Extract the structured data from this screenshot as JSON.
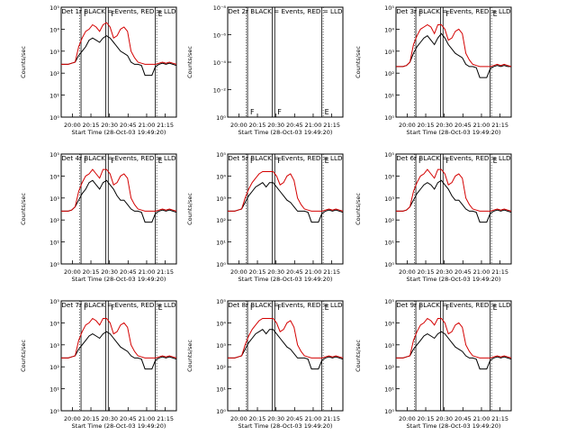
{
  "figure": {
    "ylabel": "Counts/sec",
    "xlabel": "Start Time (28-Oct-03 19:49:20)",
    "xticks": [
      "20:00",
      "20:15",
      "20:30",
      "20:45",
      "21:00",
      "21:15"
    ],
    "series_colors": {
      "events": "#000000",
      "lld": "#d40000"
    },
    "series_names": {
      "events": "Events",
      "lld": "LLD"
    }
  },
  "chart_data": [
    {
      "type": "line",
      "title": "Det 1r BLACK = Events, RED = LLD",
      "ylim_exp": [
        0,
        5
      ],
      "yticklabels": [
        "10⁰",
        "10¹",
        "10²",
        "10³",
        "10⁴",
        "10⁵"
      ],
      "markers": [
        {
          "t": 20.117,
          "l": "F"
        },
        {
          "t": 20.483,
          "l": "F"
        },
        {
          "t": 21.117,
          "l": "E"
        }
      ],
      "series": [
        {
          "name": "Events",
          "key": "events",
          "logy": [
            2.4,
            2.4,
            2.4,
            2.45,
            2.5,
            2.8,
            3.0,
            3.2,
            3.5,
            3.6,
            3.5,
            3.4,
            3.6,
            3.7,
            3.6,
            3.4,
            3.2,
            3.0,
            2.9,
            2.8,
            2.5,
            2.4,
            2.4,
            2.35,
            1.9,
            1.9,
            1.9,
            2.3,
            2.4,
            2.45,
            2.4,
            2.45,
            2.4,
            2.35
          ]
        },
        {
          "name": "LLD",
          "key": "lld",
          "logy": [
            2.4,
            2.4,
            2.4,
            2.45,
            2.5,
            3.2,
            3.6,
            3.9,
            4.0,
            4.2,
            4.1,
            3.9,
            4.2,
            4.3,
            4.1,
            3.6,
            3.7,
            4.0,
            4.1,
            3.9,
            3.0,
            2.7,
            2.5,
            2.45,
            2.4,
            2.4,
            2.4,
            2.4,
            2.45,
            2.5,
            2.45,
            2.5,
            2.45,
            2.4
          ]
        }
      ]
    },
    {
      "type": "line",
      "title": "Det 2r BLACK = Events, RED = LLD",
      "ylim_exp": [
        0,
        -8
      ],
      "yticklabels": [
        "10⁰",
        "10⁻²",
        "10⁻⁴",
        "10⁻⁶",
        "10⁻⁸"
      ],
      "markers": [
        {
          "t": 20.117,
          "l": "F"
        },
        {
          "t": 20.483,
          "l": "F"
        },
        {
          "t": 21.117,
          "l": "E"
        }
      ],
      "series": []
    },
    {
      "type": "line",
      "title": "Det 3r BLACK = Events, RED = LLD",
      "ylim_exp": [
        0,
        5
      ],
      "yticklabels": [
        "10⁰",
        "10¹",
        "10²",
        "10³",
        "10⁴",
        "10⁵"
      ],
      "markers": [
        {
          "t": 20.117,
          "l": "F"
        },
        {
          "t": 20.483,
          "l": "F"
        },
        {
          "t": 21.117,
          "l": "E"
        }
      ],
      "series": [
        {
          "name": "Events",
          "key": "events",
          "logy": [
            2.3,
            2.3,
            2.3,
            2.35,
            2.5,
            2.9,
            3.2,
            3.4,
            3.6,
            3.7,
            3.5,
            3.3,
            3.6,
            3.8,
            3.6,
            3.3,
            3.1,
            2.9,
            2.8,
            2.7,
            2.4,
            2.3,
            2.3,
            2.25,
            1.8,
            1.8,
            1.8,
            2.2,
            2.3,
            2.35,
            2.3,
            2.35,
            2.3,
            2.3
          ]
        },
        {
          "name": "LLD",
          "key": "lld",
          "logy": [
            2.3,
            2.3,
            2.3,
            2.35,
            2.5,
            3.3,
            3.7,
            4.0,
            4.1,
            4.2,
            4.1,
            3.8,
            4.2,
            4.2,
            4.0,
            3.5,
            3.6,
            3.9,
            4.0,
            3.8,
            2.9,
            2.6,
            2.4,
            2.35,
            2.3,
            2.3,
            2.3,
            2.3,
            2.35,
            2.4,
            2.35,
            2.4,
            2.35,
            2.3
          ]
        }
      ]
    },
    {
      "type": "line",
      "title": "Det 4r BLACK = Events, RED = LLD",
      "ylim_exp": [
        0,
        5
      ],
      "yticklabels": [
        "10⁰",
        "10¹",
        "10²",
        "10³",
        "10⁴",
        "10⁵"
      ],
      "markers": [
        {
          "t": 20.117,
          "l": "F"
        },
        {
          "t": 20.483,
          "l": "F"
        },
        {
          "t": 21.117,
          "l": "E"
        }
      ],
      "series": [
        {
          "name": "Events",
          "key": "events",
          "logy": [
            2.4,
            2.4,
            2.4,
            2.45,
            2.6,
            2.9,
            3.2,
            3.4,
            3.7,
            3.8,
            3.6,
            3.4,
            3.7,
            3.8,
            3.6,
            3.4,
            3.1,
            2.9,
            2.9,
            2.7,
            2.5,
            2.4,
            2.4,
            2.35,
            1.9,
            1.9,
            1.9,
            2.3,
            2.4,
            2.45,
            2.4,
            2.45,
            2.4,
            2.35
          ]
        },
        {
          "name": "LLD",
          "key": "lld",
          "logy": [
            2.4,
            2.4,
            2.4,
            2.45,
            2.6,
            3.3,
            3.7,
            4.0,
            4.1,
            4.3,
            4.1,
            3.9,
            4.3,
            4.3,
            4.1,
            3.6,
            3.7,
            4.0,
            4.1,
            3.9,
            3.0,
            2.7,
            2.5,
            2.45,
            2.4,
            2.4,
            2.4,
            2.4,
            2.45,
            2.5,
            2.45,
            2.5,
            2.45,
            2.4
          ]
        }
      ]
    },
    {
      "type": "line",
      "title": "Det 5r BLACK = Events, RED = LLD",
      "ylim_exp": [
        0,
        5
      ],
      "yticklabels": [
        "10⁰",
        "10¹",
        "10²",
        "10³",
        "10⁴",
        "10⁵"
      ],
      "markers": [
        {
          "t": 20.117,
          "l": "F"
        },
        {
          "t": 20.483,
          "l": "F"
        },
        {
          "t": 21.117,
          "l": "E"
        }
      ],
      "series": [
        {
          "name": "Events",
          "key": "events",
          "logy": [
            2.4,
            2.4,
            2.4,
            2.45,
            2.5,
            2.8,
            3.1,
            3.3,
            3.5,
            3.6,
            3.7,
            3.5,
            3.7,
            3.7,
            3.5,
            3.3,
            3.1,
            2.9,
            2.8,
            2.6,
            2.4,
            2.4,
            2.4,
            2.35,
            1.9,
            1.9,
            1.9,
            2.3,
            2.4,
            2.45,
            2.4,
            2.45,
            2.4,
            2.35
          ]
        },
        {
          "name": "LLD",
          "key": "lld",
          "logy": [
            2.4,
            2.4,
            2.4,
            2.45,
            2.5,
            3.0,
            3.4,
            3.7,
            3.9,
            4.1,
            4.2,
            4.2,
            4.2,
            4.2,
            4.0,
            3.6,
            3.7,
            4.0,
            4.1,
            3.8,
            3.0,
            2.7,
            2.5,
            2.45,
            2.4,
            2.4,
            2.4,
            2.4,
            2.45,
            2.5,
            2.45,
            2.5,
            2.45,
            2.4
          ]
        }
      ]
    },
    {
      "type": "line",
      "title": "Det 6r BLACK = Events, RED = LLD",
      "ylim_exp": [
        0,
        5
      ],
      "yticklabels": [
        "10⁰",
        "10¹",
        "10²",
        "10³",
        "10⁴",
        "10⁵"
      ],
      "markers": [
        {
          "t": 20.117,
          "l": "F"
        },
        {
          "t": 20.483,
          "l": "F"
        },
        {
          "t": 21.117,
          "l": "E"
        }
      ],
      "series": [
        {
          "name": "Events",
          "key": "events",
          "logy": [
            2.4,
            2.4,
            2.4,
            2.45,
            2.6,
            2.9,
            3.2,
            3.4,
            3.6,
            3.7,
            3.6,
            3.4,
            3.7,
            3.8,
            3.6,
            3.4,
            3.1,
            2.9,
            2.9,
            2.7,
            2.5,
            2.4,
            2.4,
            2.35,
            1.9,
            1.9,
            1.9,
            2.3,
            2.4,
            2.45,
            2.4,
            2.45,
            2.4,
            2.35
          ]
        },
        {
          "name": "LLD",
          "key": "lld",
          "logy": [
            2.4,
            2.4,
            2.4,
            2.45,
            2.6,
            3.3,
            3.7,
            4.0,
            4.1,
            4.3,
            4.1,
            3.9,
            4.3,
            4.3,
            4.1,
            3.6,
            3.7,
            4.0,
            4.1,
            3.9,
            3.0,
            2.7,
            2.5,
            2.45,
            2.4,
            2.4,
            2.4,
            2.4,
            2.45,
            2.5,
            2.45,
            2.5,
            2.45,
            2.4
          ]
        }
      ]
    },
    {
      "type": "line",
      "title": "Det 7r BLACK = Events, RED = LLD",
      "ylim_exp": [
        0,
        5
      ],
      "yticklabels": [
        "10⁰",
        "10¹",
        "10²",
        "10³",
        "10⁴",
        "10⁵"
      ],
      "markers": [
        {
          "t": 20.117,
          "l": "F"
        },
        {
          "t": 20.483,
          "l": "F"
        },
        {
          "t": 21.117,
          "l": "E"
        }
      ],
      "series": [
        {
          "name": "Events",
          "key": "events",
          "logy": [
            2.4,
            2.4,
            2.4,
            2.45,
            2.5,
            2.8,
            3.0,
            3.2,
            3.4,
            3.5,
            3.4,
            3.3,
            3.5,
            3.6,
            3.5,
            3.3,
            3.1,
            2.9,
            2.8,
            2.7,
            2.5,
            2.4,
            2.4,
            2.35,
            1.9,
            1.9,
            1.9,
            2.3,
            2.4,
            2.45,
            2.4,
            2.45,
            2.4,
            2.35
          ]
        },
        {
          "name": "LLD",
          "key": "lld",
          "logy": [
            2.4,
            2.4,
            2.4,
            2.45,
            2.5,
            3.2,
            3.6,
            3.9,
            4.0,
            4.2,
            4.1,
            3.9,
            4.2,
            4.2,
            4.0,
            3.5,
            3.6,
            3.9,
            4.0,
            3.8,
            3.0,
            2.7,
            2.5,
            2.45,
            2.4,
            2.4,
            2.4,
            2.4,
            2.45,
            2.5,
            2.45,
            2.5,
            2.45,
            2.4
          ]
        }
      ]
    },
    {
      "type": "line",
      "title": "Det 8r BLACK = Events, RED = LLD",
      "ylim_exp": [
        0,
        5
      ],
      "yticklabels": [
        "10⁰",
        "10¹",
        "10²",
        "10³",
        "10⁴",
        "10⁵"
      ],
      "markers": [
        {
          "t": 20.117,
          "l": "F"
        },
        {
          "t": 20.483,
          "l": "F"
        },
        {
          "t": 21.117,
          "l": "E"
        }
      ],
      "series": [
        {
          "name": "Events",
          "key": "events",
          "logy": [
            2.4,
            2.4,
            2.4,
            2.45,
            2.5,
            2.8,
            3.1,
            3.3,
            3.5,
            3.6,
            3.7,
            3.5,
            3.7,
            3.7,
            3.5,
            3.3,
            3.1,
            2.9,
            2.8,
            2.6,
            2.4,
            2.4,
            2.4,
            2.35,
            1.9,
            1.9,
            1.9,
            2.3,
            2.4,
            2.45,
            2.4,
            2.45,
            2.4,
            2.35
          ]
        },
        {
          "name": "LLD",
          "key": "lld",
          "logy": [
            2.4,
            2.4,
            2.4,
            2.45,
            2.5,
            3.0,
            3.4,
            3.7,
            3.9,
            4.1,
            4.2,
            4.2,
            4.2,
            4.2,
            4.0,
            3.6,
            3.7,
            4.0,
            4.1,
            3.8,
            3.0,
            2.7,
            2.5,
            2.45,
            2.4,
            2.4,
            2.4,
            2.4,
            2.45,
            2.5,
            2.45,
            2.5,
            2.45,
            2.4
          ]
        }
      ]
    },
    {
      "type": "line",
      "title": "Det 9r BLACK = Events, RED = LLD",
      "ylim_exp": [
        0,
        5
      ],
      "yticklabels": [
        "10⁰",
        "10¹",
        "10²",
        "10³",
        "10⁴",
        "10⁵"
      ],
      "markers": [
        {
          "t": 20.117,
          "l": "F"
        },
        {
          "t": 20.483,
          "l": "F"
        },
        {
          "t": 21.117,
          "l": "E"
        }
      ],
      "series": [
        {
          "name": "Events",
          "key": "events",
          "logy": [
            2.4,
            2.4,
            2.4,
            2.45,
            2.5,
            2.8,
            3.0,
            3.2,
            3.4,
            3.5,
            3.4,
            3.3,
            3.5,
            3.6,
            3.5,
            3.3,
            3.1,
            2.9,
            2.8,
            2.7,
            2.5,
            2.4,
            2.4,
            2.35,
            1.9,
            1.9,
            1.9,
            2.3,
            2.4,
            2.45,
            2.4,
            2.45,
            2.4,
            2.35
          ]
        },
        {
          "name": "LLD",
          "key": "lld",
          "logy": [
            2.4,
            2.4,
            2.4,
            2.45,
            2.5,
            3.2,
            3.6,
            3.9,
            4.0,
            4.2,
            4.1,
            3.9,
            4.2,
            4.2,
            4.0,
            3.5,
            3.6,
            3.9,
            4.0,
            3.8,
            3.0,
            2.7,
            2.5,
            2.45,
            2.4,
            2.4,
            2.4,
            2.4,
            2.45,
            2.5,
            2.45,
            2.5,
            2.45,
            2.4
          ]
        }
      ]
    }
  ]
}
